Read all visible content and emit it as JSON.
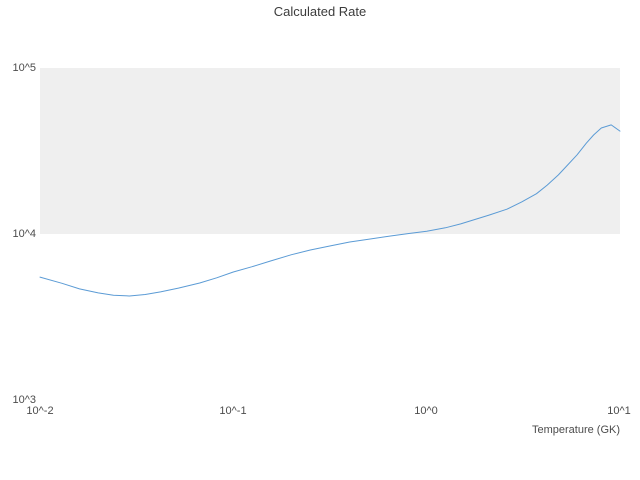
{
  "chart_data": {
    "type": "line",
    "title": "Calculated Rate",
    "xlabel": "Temperature (GK)",
    "ylabel": "",
    "x_scale": "log",
    "y_scale": "log",
    "xlim": [
      0.01,
      10
    ],
    "ylim": [
      1000,
      100000
    ],
    "x_tick_labels": [
      "10^-2",
      "10^-1",
      "10^0",
      "10^1"
    ],
    "y_tick_labels": [
      "10^3",
      "10^4",
      "10^5"
    ],
    "legend": "none",
    "grid": "band",
    "band_range": [
      10000,
      100000
    ],
    "band_color": "#efefef",
    "line_color": "#5b9bd5",
    "series_name": "Calculated Rate",
    "x": [
      0.01,
      0.013,
      0.016,
      0.02,
      0.024,
      0.029,
      0.035,
      0.042,
      0.052,
      0.067,
      0.082,
      0.1,
      0.125,
      0.155,
      0.2,
      0.25,
      0.32,
      0.4,
      0.5,
      0.65,
      0.8,
      1.0,
      1.25,
      1.5,
      2.1,
      2.6,
      3.1,
      3.7,
      4.2,
      4.8,
      5.3,
      6.0,
      6.7,
      7.3,
      8.0,
      9.0,
      10.0
    ],
    "values": [
      5500,
      5050,
      4670,
      4420,
      4280,
      4230,
      4320,
      4480,
      4720,
      5070,
      5450,
      5900,
      6350,
      6870,
      7500,
      8010,
      8500,
      8950,
      9300,
      9730,
      10050,
      10400,
      10900,
      11500,
      13000,
      14100,
      15600,
      17500,
      19700,
      22700,
      25700,
      30000,
      35300,
      39500,
      43500,
      45400,
      41700
    ]
  }
}
